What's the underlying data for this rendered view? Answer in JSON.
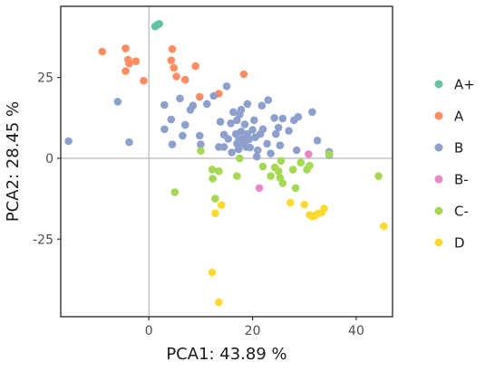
{
  "chart_data": {
    "type": "scatter",
    "xlabel": "PCA1:  43.89 %",
    "ylabel": "PCA2:  28.45 %",
    "xlim": [
      -17,
      47
    ],
    "ylim": [
      -49,
      47
    ],
    "xticks": [
      0,
      20,
      40
    ],
    "yticks": [
      -25,
      0,
      25
    ],
    "reference_lines": {
      "x": 0,
      "y": 0
    },
    "grid": false,
    "legend_position": "right",
    "series": [
      {
        "name": "A+",
        "color": "#66C2A5",
        "points": [
          [
            1.2,
            40.8
          ],
          [
            1.6,
            41.3
          ],
          [
            2.0,
            41.6
          ],
          [
            1.4,
            41.0
          ]
        ]
      },
      {
        "name": "A",
        "color": "#FC8D62",
        "points": [
          [
            -9,
            33
          ],
          [
            -4.5,
            34
          ],
          [
            -4,
            30.5
          ],
          [
            -3.8,
            29.3
          ],
          [
            -4.5,
            27
          ],
          [
            -2.5,
            30
          ],
          [
            -1,
            24
          ],
          [
            4.5,
            33.8
          ],
          [
            4.3,
            30.3
          ],
          [
            4.8,
            28
          ],
          [
            5.3,
            25.3
          ],
          [
            7,
            24.3
          ],
          [
            9,
            28.5
          ],
          [
            9.8,
            19
          ],
          [
            13.5,
            20
          ],
          [
            18.3,
            26
          ]
        ]
      },
      {
        "name": "B",
        "color": "#8DA0CB",
        "points": [
          [
            -15.5,
            5.3
          ],
          [
            -6,
            17.5
          ],
          [
            -3.8,
            5
          ],
          [
            3,
            16.5
          ],
          [
            3,
            9
          ],
          [
            4.3,
            12
          ],
          [
            4.5,
            4.3
          ],
          [
            6,
            18.5
          ],
          [
            6.5,
            7
          ],
          [
            7,
            10.3
          ],
          [
            8,
            15
          ],
          [
            8.5,
            16.3
          ],
          [
            9.8,
            7
          ],
          [
            10,
            4.3
          ],
          [
            11.2,
            16.8
          ],
          [
            12.5,
            19.3
          ],
          [
            13.5,
            3.5
          ],
          [
            13.8,
            11.3
          ],
          [
            14.5,
            7.3
          ],
          [
            14.5,
            3.5
          ],
          [
            15,
            22.3
          ],
          [
            15.3,
            6
          ],
          [
            15.8,
            10.8
          ],
          [
            16,
            1.8
          ],
          [
            16.3,
            14.3
          ],
          [
            16.8,
            7.5
          ],
          [
            17,
            11.8
          ],
          [
            17,
            4.5
          ],
          [
            17.3,
            5.5
          ],
          [
            17.3,
            2.8
          ],
          [
            17.5,
            13.5
          ],
          [
            17.8,
            15
          ],
          [
            17.8,
            8.3
          ],
          [
            18,
            6
          ],
          [
            18.3,
            4.5
          ],
          [
            18.5,
            10.5
          ],
          [
            18.8,
            3.5
          ],
          [
            19,
            16.8
          ],
          [
            19,
            7.5
          ],
          [
            19.3,
            5.8
          ],
          [
            19.5,
            3.3
          ],
          [
            20,
            8.8
          ],
          [
            20.3,
            11.8
          ],
          [
            20.5,
            6.5
          ],
          [
            20.8,
            0.5
          ],
          [
            21,
            2.5
          ],
          [
            21.5,
            7.5
          ],
          [
            21.8,
            16.3
          ],
          [
            22,
            9
          ],
          [
            22.8,
            4.5
          ],
          [
            23,
            18
          ],
          [
            23.5,
            1.5
          ],
          [
            24.2,
            12.5
          ],
          [
            24.5,
            7.5
          ],
          [
            25,
            9.5
          ],
          [
            25.3,
            4
          ],
          [
            25.8,
            12.3
          ],
          [
            27,
            8.5
          ],
          [
            28,
            11.8
          ],
          [
            28.5,
            2.5
          ],
          [
            28.8,
            12.8
          ],
          [
            31.5,
            14.3
          ],
          [
            32.5,
            5.5
          ],
          [
            34.8,
            2
          ],
          [
            34.8,
            1
          ]
        ]
      },
      {
        "name": "B-",
        "color": "#E78AC3",
        "points": [
          [
            30.8,
            1.3
          ],
          [
            21.3,
            -9.2
          ]
        ]
      },
      {
        "name": "C-",
        "color": "#A6D854",
        "points": [
          [
            5,
            -10.5
          ],
          [
            10,
            2.3
          ],
          [
            12.2,
            -3.5
          ],
          [
            12.3,
            -6.3
          ],
          [
            12.8,
            -12.5
          ],
          [
            13.5,
            -4
          ],
          [
            17.5,
            0
          ],
          [
            17,
            -5.5
          ],
          [
            22,
            -2.5
          ],
          [
            23.5,
            -5.5
          ],
          [
            24.3,
            -2.8
          ],
          [
            25,
            -4
          ],
          [
            25.3,
            -6
          ],
          [
            25.8,
            -7.7
          ],
          [
            27.8,
            -3.5
          ],
          [
            28.3,
            -9.2
          ],
          [
            29.3,
            -1.3
          ],
          [
            30.5,
            -3.5
          ],
          [
            31,
            -2.3
          ],
          [
            34.8,
            1.3
          ],
          [
            44.3,
            -5.5
          ],
          [
            25.5,
            -0.8
          ]
        ]
      },
      {
        "name": "D",
        "color": "#FFD92F",
        "points": [
          [
            12.8,
            -17
          ],
          [
            14,
            -14.5
          ],
          [
            12.2,
            -35.3
          ],
          [
            13.5,
            -44.5
          ],
          [
            27.3,
            -13.7
          ],
          [
            30,
            -14.3
          ],
          [
            31,
            -17.5
          ],
          [
            31.5,
            -18
          ],
          [
            32,
            -17.8
          ],
          [
            32.5,
            -17.2
          ],
          [
            33.3,
            -16.8
          ],
          [
            33.8,
            -15.5
          ],
          [
            45.3,
            -21
          ]
        ]
      }
    ]
  }
}
